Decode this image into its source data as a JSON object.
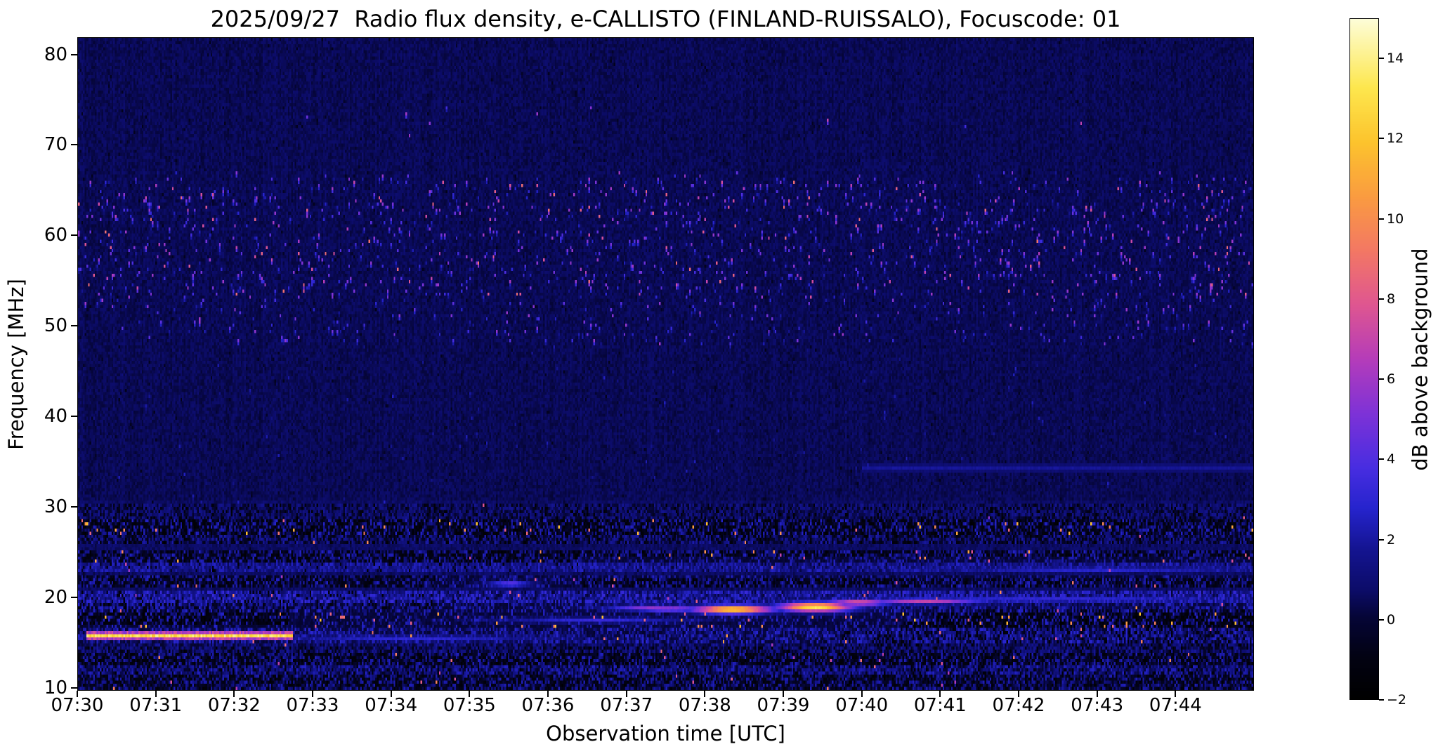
{
  "figure": {
    "background_color": "#ffffff",
    "text_color": "#000000"
  },
  "chart_data": {
    "type": "heatmap",
    "title": "2025/09/27  Radio flux density, e-CALLISTO (FINLAND-RUISSALO), Focuscode: 01",
    "date": "2025/09/27",
    "station": "FINLAND-RUISSALO",
    "focuscode": "01",
    "xlabel": "Observation time [UTC]",
    "ylabel": "Frequency [MHz]",
    "colorbar_label": "dB above background",
    "x_ticks": [
      "07:30",
      "07:31",
      "07:32",
      "07:33",
      "07:34",
      "07:35",
      "07:36",
      "07:37",
      "07:38",
      "07:39",
      "07:40",
      "07:41",
      "07:42",
      "07:43",
      "07:44"
    ],
    "x_range_minutes": [
      0,
      15
    ],
    "y_ticks": [
      80,
      70,
      60,
      50,
      40,
      30,
      20,
      10
    ],
    "y_range_mhz": [
      9.7,
      81.9
    ],
    "colorbar_ticks": [
      14,
      12,
      10,
      8,
      6,
      4,
      2,
      0,
      -2
    ],
    "colorbar_range_db": [
      -2,
      15
    ],
    "background_db": 0.45,
    "grid": {
      "nt": 700,
      "nf": 210
    },
    "colormap_stops": [
      {
        "t": 0.0,
        "c": [
          0,
          0,
          0
        ]
      },
      {
        "t": 0.06,
        "c": [
          2,
          2,
          18
        ]
      },
      {
        "t": 0.12,
        "c": [
          5,
          5,
          55
        ]
      },
      {
        "t": 0.16,
        "c": [
          12,
          12,
          105
        ]
      },
      {
        "t": 0.22,
        "c": [
          20,
          20,
          145
        ]
      },
      {
        "t": 0.28,
        "c": [
          38,
          36,
          205
        ]
      },
      {
        "t": 0.34,
        "c": [
          72,
          45,
          225
        ]
      },
      {
        "t": 0.42,
        "c": [
          126,
          50,
          215
        ]
      },
      {
        "t": 0.5,
        "c": [
          181,
          60,
          186
        ]
      },
      {
        "t": 0.58,
        "c": [
          223,
          86,
          145
        ]
      },
      {
        "t": 0.66,
        "c": [
          243,
          120,
          100
        ]
      },
      {
        "t": 0.74,
        "c": [
          250,
          156,
          64
        ]
      },
      {
        "t": 0.82,
        "c": [
          252,
          196,
          45
        ]
      },
      {
        "t": 0.9,
        "c": [
          253,
          231,
          78
        ]
      },
      {
        "t": 1.0,
        "c": [
          253,
          253,
          215
        ]
      }
    ],
    "features": {
      "washes": [
        {
          "f_min": 9.7,
          "f_max": 20.6,
          "extra": 0.5
        },
        {
          "f_min": 20.6,
          "f_max": 30.5,
          "extra": 0.2
        }
      ],
      "speckle_regions": [
        {
          "f_min": 48,
          "f_max": 67,
          "t_min": 0,
          "t_max": 15,
          "count": 1100,
          "v_min": 1.5,
          "v_max": 6
        },
        {
          "f_min": 53,
          "f_max": 66,
          "t_min": 0,
          "t_max": 15,
          "count": 420,
          "v_min": 2,
          "v_max": 9
        },
        {
          "f_min": 71,
          "f_max": 74,
          "t_min": 0,
          "t_max": 15,
          "count": 10,
          "v_min": 2,
          "v_max": 7
        },
        {
          "f_min": 30,
          "f_max": 48,
          "t_min": 0,
          "t_max": 15,
          "count": 120,
          "v_min": 1,
          "v_max": 2.6
        }
      ],
      "rfi_bands": [
        {
          "f_min": 28.6,
          "f_max": 30.3,
          "base": 0.7,
          "noise": 1.0,
          "black_frac": 0.18,
          "bright_prob": 0.002,
          "bright_v": 5
        },
        {
          "f_min": 26.9,
          "f_max": 28.6,
          "base": 0.5,
          "noise": 2.2,
          "black_frac": 0.34,
          "bright_prob": 0.012,
          "bright_v": 8
        },
        {
          "f_min": 25.7,
          "f_max": 26.9,
          "base": 0.8,
          "noise": 1.4,
          "black_frac": 0.28,
          "bright_prob": 0.003,
          "bright_v": 6
        },
        {
          "f_min": 23.9,
          "f_max": 25.3,
          "base": 0.6,
          "noise": 2.0,
          "black_frac": 0.3,
          "bright_prob": 0.009,
          "bright_v": 7
        },
        {
          "f_min": 22.9,
          "f_max": 23.7,
          "base": 1.6,
          "noise": 1.1,
          "black_frac": 0.08,
          "bright_prob": 0.002,
          "bright_v": 5
        },
        {
          "f_min": 20.9,
          "f_max": 22.4,
          "base": 0.7,
          "noise": 1.9,
          "black_frac": 0.3,
          "bright_prob": 0.004,
          "bright_v": 6
        },
        {
          "f_min": 19.4,
          "f_max": 20.6,
          "base": 1.9,
          "noise": 1.4,
          "black_frac": 0.1,
          "bright_prob": 0.003,
          "bright_v": 6
        },
        {
          "f_min": 18.3,
          "f_max": 19.4,
          "base": 1.1,
          "noise": 1.7,
          "black_frac": 0.22,
          "bright_prob": 0.004,
          "bright_v": 7
        },
        {
          "f_min": 16.7,
          "f_max": 18.3,
          "base": 0.4,
          "noise": 2.4,
          "black_frac": 0.38,
          "bright_prob": 0.016,
          "bright_v": 8
        },
        {
          "f_min": 14.7,
          "f_max": 16.7,
          "base": 1.3,
          "noise": 1.6,
          "black_frac": 0.18,
          "bright_prob": 0.005,
          "bright_v": 7
        },
        {
          "f_min": 13.9,
          "f_max": 14.7,
          "base": 0.8,
          "noise": 1.2,
          "black_frac": 0.2,
          "bright_prob": 0.002,
          "bright_v": 5
        },
        {
          "f_min": 12.5,
          "f_max": 13.9,
          "base": 0.5,
          "noise": 2.0,
          "black_frac": 0.33,
          "bright_prob": 0.006,
          "bright_v": 6
        },
        {
          "f_min": 11.3,
          "f_max": 12.5,
          "base": 1.2,
          "noise": 1.4,
          "black_frac": 0.15,
          "bright_prob": 0.003,
          "bright_v": 5
        },
        {
          "f_min": 9.7,
          "f_max": 11.3,
          "base": 0.6,
          "noise": 1.8,
          "black_frac": 0.28,
          "bright_prob": 0.004,
          "bright_v": 6
        }
      ],
      "bright_lines": [
        {
          "f": 15.85,
          "t_min": 0.1,
          "t_max": 2.75,
          "width_mhz": 0.55,
          "v": 13
        },
        {
          "f": 34.5,
          "t_min": 10.0,
          "t_max": 15,
          "width_mhz": 0.3,
          "v": 1.8
        }
      ],
      "bursts": [
        {
          "t": 8.35,
          "f": 18.8,
          "rt": 0.55,
          "rf": 0.5,
          "v": 13
        },
        {
          "t": 9.4,
          "f": 19.05,
          "rt": 0.5,
          "rf": 0.55,
          "v": 13.5
        },
        {
          "t": 9.95,
          "f": 19.55,
          "rt": 0.45,
          "rf": 0.4,
          "v": 8
        },
        {
          "t": 10.8,
          "f": 19.7,
          "rt": 0.8,
          "rf": 0.35,
          "v": 7
        },
        {
          "t": 7.55,
          "f": 18.85,
          "rt": 0.55,
          "rf": 0.35,
          "v": 6
        },
        {
          "t": 7.3,
          "f": 18.95,
          "rt": 0.6,
          "rf": 0.15,
          "v": 5.5
        },
        {
          "t": 5.5,
          "f": 21.6,
          "rt": 0.3,
          "rf": 0.3,
          "v": 4.5
        },
        {
          "t": 12.4,
          "f": 19.9,
          "rt": 2.6,
          "rf": 0.35,
          "v": 3.4
        },
        {
          "t": 6.6,
          "f": 17.6,
          "rt": 1.3,
          "rf": 0.3,
          "v": 3.2
        },
        {
          "t": 4.3,
          "f": 15.6,
          "rt": 1.8,
          "rf": 0.35,
          "v": 3.0
        },
        {
          "t": 13.0,
          "f": 23.2,
          "rt": 2.2,
          "rf": 0.3,
          "v": 3.0
        }
      ]
    }
  }
}
